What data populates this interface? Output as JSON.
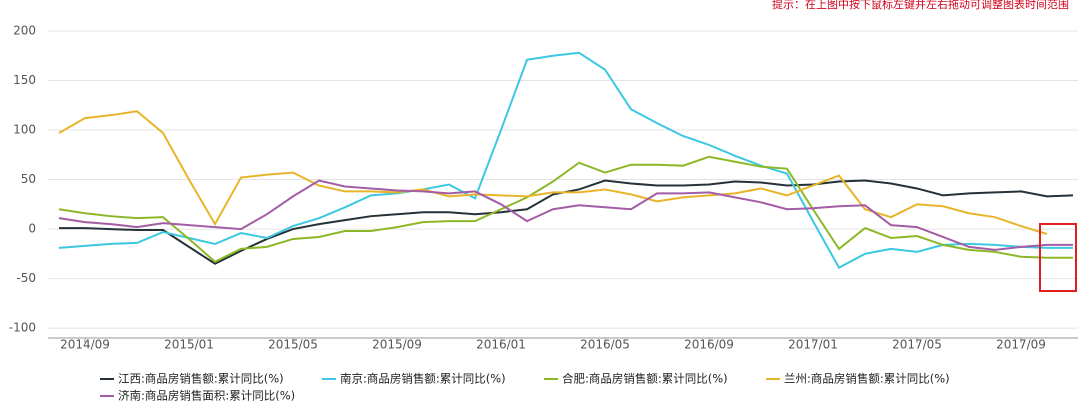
{
  "chart_data": {
    "type": "line",
    "hint": "提示：在上图中按下鼠标左键并左右拖动可调整图表时间范围",
    "categories": [
      null,
      "2014/09",
      null,
      null,
      null,
      "2015/01",
      null,
      null,
      null,
      "2015/05",
      null,
      null,
      null,
      "2015/09",
      null,
      null,
      null,
      "2016/01",
      null,
      null,
      null,
      "2016/05",
      null,
      null,
      null,
      "2016/09",
      null,
      null,
      null,
      "2017/01",
      null,
      null,
      null,
      "2017/05",
      null,
      null,
      null,
      "2017/09",
      null,
      null
    ],
    "ylim": [
      -110,
      200
    ],
    "yticks": [
      -100,
      -50,
      0,
      50,
      100,
      150,
      200
    ],
    "grid": true,
    "series": [
      {
        "name": "江西:商品房销售额:累计同比(%)",
        "color": "#263238",
        "values": [
          1,
          1,
          0,
          -1,
          -1,
          -18,
          -35,
          -22,
          -10,
          0,
          5,
          9,
          13,
          15,
          17,
          17,
          15,
          17,
          20,
          35,
          40,
          49,
          46,
          44,
          44,
          45,
          48,
          47,
          44,
          45,
          48,
          49,
          46,
          41,
          34,
          36,
          37,
          38,
          33,
          34
        ]
      },
      {
        "name": "南京:商品房销售额:累计同比(%)",
        "color": "#3cc8e0",
        "values": [
          -19,
          -17,
          -15,
          -14,
          -3,
          -9,
          -15,
          -4,
          -9,
          3,
          11,
          22,
          34,
          36,
          40,
          45,
          31,
          100,
          171,
          175,
          178,
          161,
          121,
          107,
          94,
          85,
          74,
          64,
          56,
          8,
          -39,
          -25,
          -20,
          -23,
          -16,
          -15,
          -16,
          -18,
          -19,
          -19
        ]
      },
      {
        "name": "合肥:商品房销售额:累计同比(%)",
        "color": "#8cb828",
        "values": [
          20,
          16,
          13,
          11,
          12,
          -10,
          -33,
          -20,
          -18,
          -10,
          -8,
          -2,
          -2,
          2,
          7,
          8,
          8,
          20,
          32,
          48,
          67,
          57,
          65,
          65,
          64,
          73,
          68,
          63,
          61,
          20,
          -20,
          1,
          -9,
          -7,
          -16,
          -21,
          -23,
          -28,
          -29,
          -29
        ]
      },
      {
        "name": "兰州:商品房销售额:累计同比(%)",
        "color": "#e8b52a",
        "values": [
          97,
          112,
          115,
          119,
          97,
          50,
          5,
          52,
          55,
          57,
          44,
          38,
          38,
          37,
          40,
          33,
          35,
          34,
          33,
          37,
          37,
          40,
          35,
          28,
          32,
          34,
          36,
          41,
          34,
          44,
          54,
          20,
          12,
          25,
          23,
          16,
          12,
          3,
          -5,
          null
        ]
      },
      {
        "name": "济南:商品房销售面积:累计同比(%)",
        "color": "#a35ca6",
        "values": [
          11,
          7,
          5,
          2,
          6,
          4,
          2,
          0,
          15,
          33,
          49,
          43,
          41,
          39,
          38,
          36,
          38,
          25,
          8,
          20,
          24,
          22,
          20,
          36,
          36,
          37,
          32,
          27,
          20,
          21,
          23,
          24,
          4,
          2,
          -8,
          -18,
          -21,
          -18,
          -16,
          -16
        ]
      }
    ]
  }
}
